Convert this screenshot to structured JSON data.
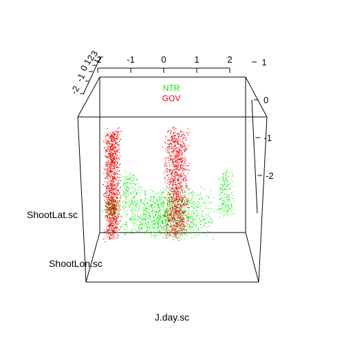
{
  "chart_data": {
    "type": "scatter",
    "projection": "3d",
    "xlabel": "J.day.sc",
    "ylabel": "ShootLat.sc",
    "zlabel": "ShootLon.sc",
    "x_ticks": [
      "-2",
      "-1",
      "0",
      "1",
      "2"
    ],
    "z_ticks": [
      "1",
      "0",
      "-1",
      "-2"
    ],
    "depth_ticks": [
      "-2",
      "-1",
      "0",
      "1",
      "2",
      "3"
    ],
    "legend_position": "top-center",
    "series": [
      {
        "name": "NTR",
        "color": "#00ee00",
        "clusters": [
          {
            "x": [
              -1.5,
              1.7
            ],
            "y": [
              -2.3,
              -1.3
            ],
            "depth": [
              -1,
              2.5
            ],
            "n": 1100
          },
          {
            "x": [
              -1.8,
              -1.3
            ],
            "y": [
              -1.9,
              -1.5
            ],
            "depth": [
              0,
              2
            ],
            "n": 120
          },
          {
            "x": [
              -1.4,
              -0.5
            ],
            "y": [
              -1.4,
              -0.7
            ],
            "depth": [
              -1,
              1
            ],
            "n": 120
          },
          {
            "x": [
              1.7,
              2.3
            ],
            "y": [
              -1.6,
              -0.5
            ],
            "depth": [
              -2,
              0
            ],
            "n": 160
          }
        ]
      },
      {
        "name": "GOV",
        "color": "#ee0000",
        "clusters": [
          {
            "x": [
              -1.7,
              -1.2
            ],
            "y": [
              -2.2,
              0.5
            ],
            "depth": [
              -2,
              1
            ],
            "n": 1100
          },
          {
            "x": [
              0.1,
              0.9
            ],
            "y": [
              -2.2,
              0.5
            ],
            "depth": [
              -2,
              1
            ],
            "n": 1100
          }
        ]
      }
    ]
  }
}
